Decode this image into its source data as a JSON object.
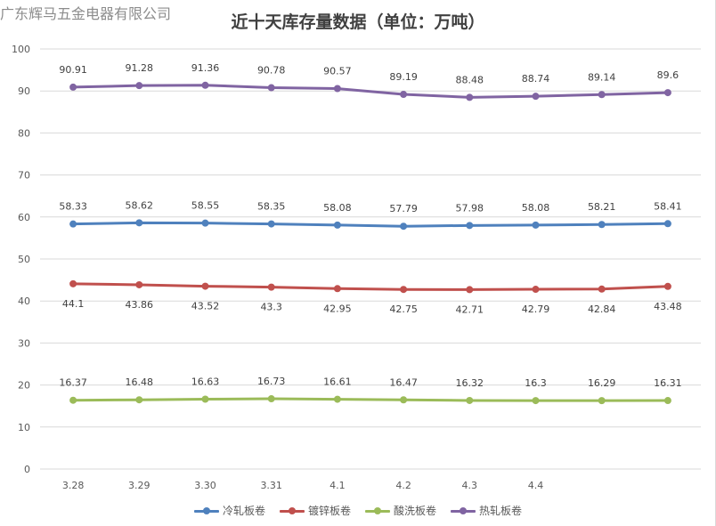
{
  "watermark": "广东辉马五金电器有限公司",
  "chart_data": {
    "type": "line",
    "title": "近十天库存量数据（单位：万吨）",
    "categories": [
      "3.28",
      "3.29",
      "3.30",
      "3.31",
      "4.1",
      "4.2",
      "4.3",
      "4.4",
      "",
      ""
    ],
    "ylim": [
      0,
      100
    ],
    "yticks": [
      0,
      10,
      20,
      30,
      40,
      50,
      60,
      70,
      80,
      90,
      100
    ],
    "grid": true,
    "legend_position": "bottom",
    "series": [
      {
        "name": "冷轧板卷",
        "color": "#4f81bd",
        "label_position": "above",
        "values": [
          58.33,
          58.62,
          58.55,
          58.35,
          58.08,
          57.79,
          57.98,
          58.08,
          58.21,
          58.41
        ]
      },
      {
        "name": "镀锌板卷",
        "color": "#c0504d",
        "label_position": "below",
        "values": [
          44.1,
          43.86,
          43.52,
          43.3,
          42.95,
          42.75,
          42.71,
          42.79,
          42.84,
          43.48
        ]
      },
      {
        "name": "酸洗板卷",
        "color": "#9bbb59",
        "label_position": "above",
        "values": [
          16.37,
          16.48,
          16.63,
          16.73,
          16.61,
          16.47,
          16.32,
          16.3,
          16.29,
          16.31
        ]
      },
      {
        "name": "热轧板卷",
        "color": "#8064a2",
        "label_position": "above",
        "values": [
          90.91,
          91.28,
          91.36,
          90.78,
          90.57,
          89.19,
          88.48,
          88.74,
          89.14,
          89.6
        ]
      }
    ]
  }
}
